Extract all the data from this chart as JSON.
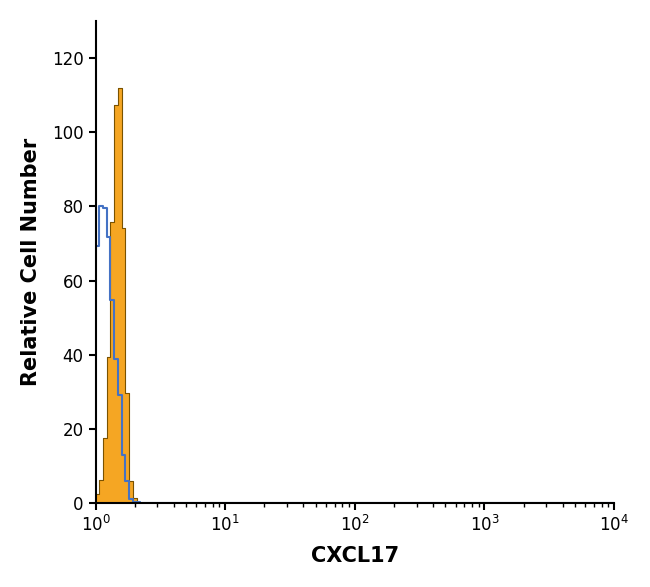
{
  "title": "",
  "xlabel": "CXCL17",
  "ylabel": "Relative Cell Number",
  "xlim_log": [
    1,
    10000
  ],
  "ylim": [
    0,
    130
  ],
  "yticks": [
    0,
    20,
    40,
    60,
    80,
    100,
    120
  ],
  "background_color": "#ffffff",
  "blue_color": "#4472C4",
  "orange_color": "#F5A623",
  "orange_edge_color": "#7a5200",
  "blue_peak_x_log": 1.08,
  "blue_peak_y": 80,
  "blue_std_log": 0.27,
  "blue_n": 2500,
  "orange_peak_x_log": 1.48,
  "orange_peak_y": 112,
  "orange_std_log": 0.16,
  "orange_n": 3000,
  "n_bins": 140,
  "log_xmin": 0,
  "log_xmax": 4
}
